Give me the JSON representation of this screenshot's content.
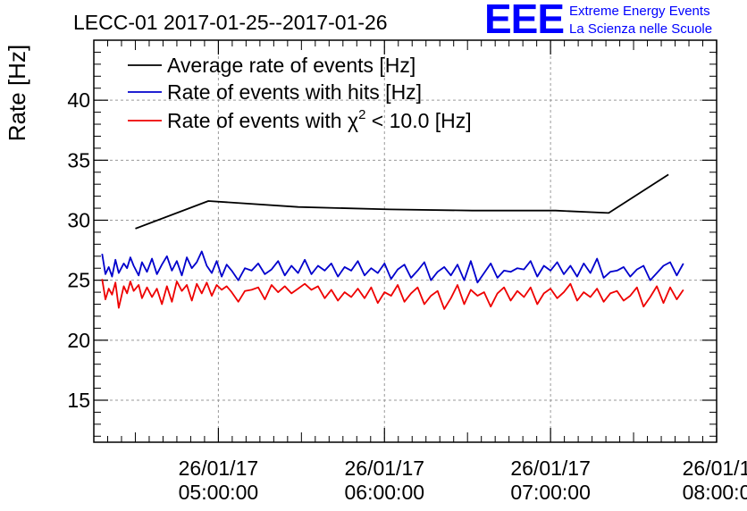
{
  "logo": {
    "letters": "EEE",
    "line1": "Extreme Energy Events",
    "line2": "La Scienza nelle Scuole",
    "color": "#0000ff"
  },
  "chart_data": {
    "type": "line",
    "title": "LECC-01 2017-01-25--2017-01-26",
    "ylabel": "Rate [Hz]",
    "xlabel": "",
    "ylim": [
      11.5,
      45
    ],
    "y_ticks": [
      15,
      20,
      25,
      30,
      35,
      40
    ],
    "x_range_hours": [
      4.25,
      8.0
    ],
    "grid": true,
    "legend_position": "top-left",
    "x_ticks": [
      {
        "hour": 5,
        "line1": "26/01/17",
        "line2": "05:00:00"
      },
      {
        "hour": 6,
        "line1": "26/01/17",
        "line2": "06:00:00"
      },
      {
        "hour": 7,
        "line1": "26/01/17",
        "line2": "07:00:00"
      },
      {
        "hour": 8,
        "line1": "26/01/1",
        "line2": "08:00:0"
      }
    ],
    "series": [
      {
        "name": "Average rate of events [Hz]",
        "color": "#000000",
        "x": [
          4.5,
          4.94,
          5.48,
          6.03,
          6.53,
          7.03,
          7.35,
          7.71
        ],
        "y": [
          29.3,
          31.6,
          31.1,
          30.9,
          30.8,
          30.8,
          30.6,
          33.8
        ]
      },
      {
        "name": "Rate of events with hits [Hz]",
        "color": "#0000cc",
        "x": [
          4.3,
          4.32,
          4.34,
          4.36,
          4.38,
          4.4,
          4.43,
          4.45,
          4.47,
          4.49,
          4.52,
          4.54,
          4.57,
          4.6,
          4.63,
          4.66,
          4.69,
          4.72,
          4.75,
          4.78,
          4.81,
          4.84,
          4.87,
          4.9,
          4.93,
          4.96,
          4.99,
          5.02,
          5.05,
          5.08,
          5.12,
          5.16,
          5.2,
          5.24,
          5.28,
          5.32,
          5.36,
          5.4,
          5.44,
          5.48,
          5.52,
          5.56,
          5.6,
          5.64,
          5.68,
          5.72,
          5.76,
          5.8,
          5.84,
          5.88,
          5.92,
          5.96,
          6.0,
          6.04,
          6.08,
          6.12,
          6.16,
          6.2,
          6.24,
          6.28,
          6.32,
          6.36,
          6.4,
          6.44,
          6.48,
          6.52,
          6.56,
          6.6,
          6.64,
          6.68,
          6.72,
          6.76,
          6.8,
          6.84,
          6.88,
          6.92,
          6.96,
          7.0,
          7.04,
          7.08,
          7.12,
          7.16,
          7.2,
          7.24,
          7.28,
          7.32,
          7.36,
          7.4,
          7.44,
          7.48,
          7.52,
          7.56,
          7.6,
          7.64,
          7.68,
          7.72,
          7.76,
          7.8
        ],
        "y": [
          27.2,
          25.5,
          26.1,
          25.3,
          26.7,
          25.6,
          26.4,
          26.0,
          26.9,
          26.2,
          25.4,
          26.5,
          25.7,
          26.8,
          25.5,
          26.3,
          27.0,
          25.8,
          26.6,
          25.4,
          26.9,
          26.0,
          26.5,
          27.4,
          26.2,
          25.6,
          26.6,
          25.3,
          26.3,
          25.8,
          25.0,
          26.0,
          25.8,
          26.4,
          25.5,
          25.9,
          26.6,
          25.4,
          26.2,
          25.6,
          26.7,
          25.5,
          26.2,
          25.8,
          26.4,
          25.3,
          26.1,
          25.8,
          26.6,
          25.4,
          26.0,
          25.6,
          26.4,
          25.1,
          25.9,
          26.3,
          25.2,
          25.8,
          26.5,
          25.0,
          25.7,
          26.1,
          25.4,
          26.3,
          25.0,
          26.6,
          24.8,
          25.6,
          26.4,
          25.2,
          25.8,
          25.7,
          26.0,
          25.9,
          26.6,
          25.3,
          26.2,
          25.8,
          26.5,
          25.5,
          26.2,
          25.3,
          26.4,
          25.6,
          26.8,
          25.2,
          25.7,
          25.8,
          26.1,
          25.3,
          25.9,
          26.2,
          25.0,
          25.6,
          26.2,
          26.5,
          25.4,
          26.4
        ]
      },
      {
        "name": "Rate of events with χ² < 10.0 [Hz]",
        "name_parts": [
          "Rate of events with ",
          "χ",
          "2",
          " < 10.0 [Hz]"
        ],
        "color": "#ee0000",
        "x": [
          4.3,
          4.32,
          4.34,
          4.36,
          4.38,
          4.4,
          4.43,
          4.45,
          4.47,
          4.49,
          4.52,
          4.54,
          4.57,
          4.6,
          4.63,
          4.66,
          4.69,
          4.72,
          4.75,
          4.78,
          4.81,
          4.84,
          4.87,
          4.9,
          4.93,
          4.96,
          4.99,
          5.02,
          5.05,
          5.08,
          5.12,
          5.16,
          5.2,
          5.24,
          5.28,
          5.32,
          5.36,
          5.4,
          5.44,
          5.48,
          5.52,
          5.56,
          5.6,
          5.64,
          5.68,
          5.72,
          5.76,
          5.8,
          5.84,
          5.88,
          5.92,
          5.96,
          6.0,
          6.04,
          6.08,
          6.12,
          6.16,
          6.2,
          6.24,
          6.28,
          6.32,
          6.36,
          6.4,
          6.44,
          6.48,
          6.52,
          6.56,
          6.6,
          6.64,
          6.68,
          6.72,
          6.76,
          6.8,
          6.84,
          6.88,
          6.92,
          6.96,
          7.0,
          7.04,
          7.08,
          7.12,
          7.16,
          7.2,
          7.24,
          7.28,
          7.32,
          7.36,
          7.4,
          7.44,
          7.48,
          7.52,
          7.56,
          7.6,
          7.64,
          7.68,
          7.72,
          7.76,
          7.8
        ],
        "y": [
          25.1,
          23.4,
          24.3,
          23.8,
          24.8,
          22.7,
          24.5,
          23.9,
          24.9,
          24.1,
          24.6,
          23.5,
          24.4,
          23.6,
          24.3,
          23.0,
          24.5,
          23.2,
          24.9,
          24.1,
          24.6,
          23.3,
          24.7,
          23.9,
          24.8,
          23.7,
          24.6,
          24.2,
          24.5,
          24.0,
          23.2,
          24.1,
          24.2,
          24.4,
          23.4,
          24.6,
          24.0,
          24.5,
          23.9,
          24.3,
          24.7,
          24.2,
          24.5,
          23.5,
          24.2,
          23.3,
          24.0,
          23.6,
          24.3,
          23.5,
          24.4,
          23.1,
          24.0,
          23.7,
          24.6,
          23.2,
          23.9,
          24.4,
          23.0,
          23.7,
          24.1,
          22.6,
          23.5,
          24.6,
          23.0,
          24.2,
          23.7,
          24.0,
          22.8,
          23.9,
          24.4,
          23.3,
          24.1,
          23.6,
          24.4,
          23.0,
          23.9,
          24.3,
          23.5,
          24.0,
          24.7,
          23.3,
          24.0,
          23.6,
          24.3,
          23.2,
          23.9,
          24.1,
          23.3,
          23.7,
          24.4,
          22.8,
          23.6,
          24.5,
          23.1,
          24.4,
          23.4,
          24.2
        ]
      }
    ]
  }
}
